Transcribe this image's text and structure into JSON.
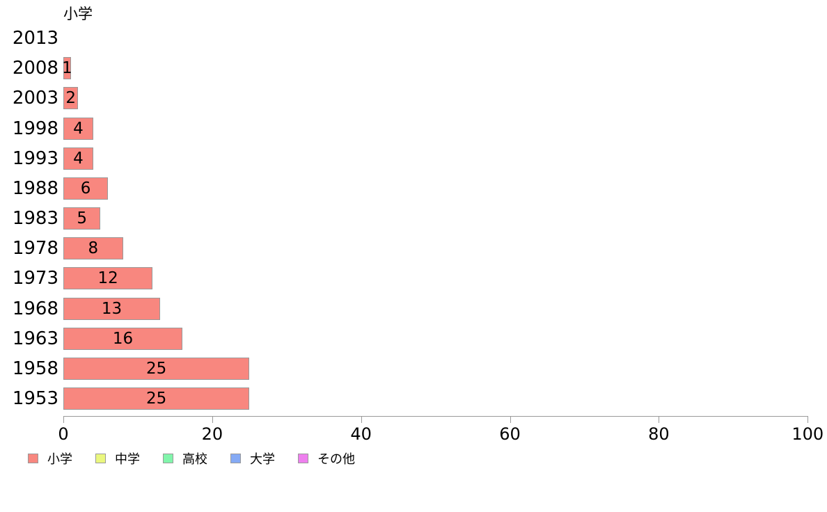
{
  "chart_data": {
    "type": "bar",
    "orientation": "horizontal",
    "title": "小学",
    "series_name": "小学",
    "categories": [
      "2013",
      "2008",
      "2003",
      "1998",
      "1993",
      "1988",
      "1983",
      "1978",
      "1973",
      "1968",
      "1963",
      "1958",
      "1953"
    ],
    "values": [
      0,
      1,
      2,
      4,
      4,
      6,
      5,
      8,
      12,
      13,
      16,
      25,
      25
    ],
    "bar_value_labels": [
      "",
      "1",
      "2",
      "4",
      "4",
      "6",
      "5",
      "8",
      "12",
      "13",
      "16",
      "25",
      "25"
    ],
    "xlabel": "",
    "ylabel": "",
    "xlim": [
      0,
      100
    ],
    "x_ticks": [
      0,
      20,
      40,
      60,
      80,
      100
    ],
    "grid": false,
    "bar_color": "#f8877f",
    "bar_border_color": "#999999",
    "axis_color": "#999999",
    "text_color": "#000000",
    "legend_position": "bottom-left",
    "legend": [
      {
        "label": "小学",
        "color": "#f8877f"
      },
      {
        "label": "中学",
        "color": "#eaf77e"
      },
      {
        "label": "高校",
        "color": "#81f5ab"
      },
      {
        "label": "大学",
        "color": "#85aaf5"
      },
      {
        "label": "その他",
        "color": "#ee7fee"
      }
    ]
  }
}
